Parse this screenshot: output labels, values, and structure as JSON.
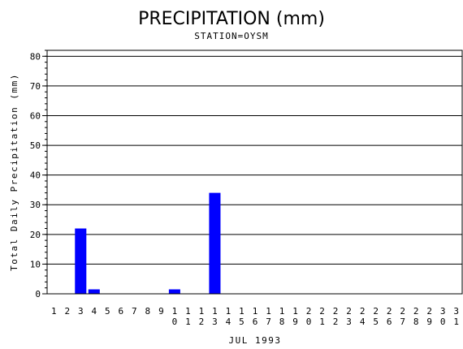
{
  "chart_data": {
    "type": "bar",
    "title": "PRECIPITATION (mm)",
    "subtitle": "STATION=OYSM",
    "ylabel": "Total Daily Precipitation (mm)",
    "xlabel": "JUL 1993",
    "ylim": [
      0,
      82
    ],
    "yticks": [
      0,
      10,
      20,
      30,
      40,
      50,
      60,
      70,
      80
    ],
    "grid": true,
    "categories": [
      "1",
      "2",
      "3",
      "4",
      "5",
      "6",
      "7",
      "8",
      "9",
      "10",
      "11",
      "12",
      "13",
      "14",
      "15",
      "16",
      "17",
      "18",
      "19",
      "20",
      "21",
      "22",
      "23",
      "24",
      "25",
      "26",
      "27",
      "28",
      "29",
      "30",
      "31"
    ],
    "values": [
      0,
      0,
      22,
      1.5,
      0,
      0,
      0,
      0,
      0,
      1.5,
      0,
      0,
      34,
      0,
      0,
      0,
      0,
      0,
      0,
      0,
      0,
      0,
      0,
      0,
      0,
      0,
      0,
      0,
      0,
      0,
      0
    ],
    "bar_color": "#0000ff"
  }
}
